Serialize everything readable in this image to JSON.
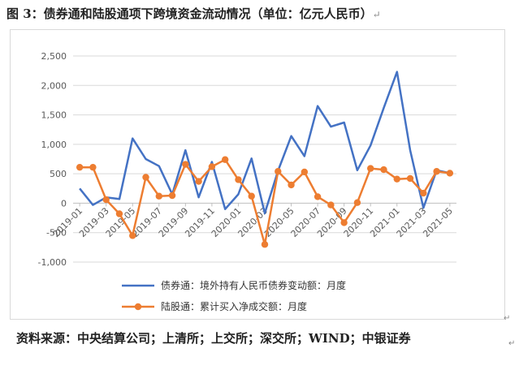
{
  "figure": {
    "title": "图 3：债券通和陆股通项下跨境资金流动情况（单位：亿元人民币）",
    "source": "资料来源：中央结算公司；上清所；上交所；深交所；WIND；中银证券"
  },
  "colors": {
    "bond": "#4472C4",
    "stock": "#ED7D31",
    "grid": "#d9d9d9",
    "axis": "#bfbfbf"
  },
  "chart_data": {
    "type": "line",
    "x": [
      "2019-01",
      "2019-02",
      "2019-03",
      "2019-04",
      "2019-05",
      "2019-06",
      "2019-07",
      "2019-08",
      "2019-09",
      "2019-10",
      "2019-11",
      "2019-12",
      "2020-01",
      "2020-02",
      "2020-03",
      "2020-04",
      "2020-05",
      "2020-06",
      "2020-07",
      "2020-08",
      "2020-09",
      "2020-10",
      "2020-11",
      "2020-12",
      "2021-01",
      "2021-02",
      "2021-03",
      "2021-04",
      "2021-05"
    ],
    "tick_labels": [
      "2019-01",
      "2019-03",
      "2019-05",
      "2019-07",
      "2019-09",
      "2019-11",
      "2020-01",
      "2020-03",
      "2020-05",
      "2020-07",
      "2020-09",
      "2020-11",
      "2021-01",
      "2021-03",
      "2021-05"
    ],
    "y_ticks": [
      -1000,
      -500,
      0,
      500,
      1000,
      1500,
      2000,
      2500
    ],
    "y_tick_labels": [
      "-1,000",
      "-500",
      "0",
      "500",
      "1,000",
      "1,500",
      "2,000",
      "2,500"
    ],
    "ylim": [
      -1000,
      2500
    ],
    "grid": true,
    "legend_position": "bottom",
    "series": [
      {
        "name": "债券通：境外持有人民币债券变动额：月度",
        "marker": false,
        "values": [
          250,
          -30,
          100,
          70,
          1100,
          750,
          630,
          150,
          900,
          100,
          700,
          -100,
          150,
          760,
          -170,
          550,
          1140,
          800,
          1650,
          1300,
          1370,
          560,
          980,
          1620,
          2230,
          900,
          -80,
          560,
          510
        ]
      },
      {
        "name": "陆股通：累计买入净成交额：月度",
        "marker": true,
        "values": [
          610,
          610,
          60,
          -180,
          -550,
          440,
          120,
          130,
          660,
          370,
          620,
          740,
          400,
          120,
          -700,
          540,
          310,
          530,
          110,
          -30,
          -330,
          10,
          590,
          570,
          410,
          420,
          170,
          540,
          510
        ]
      }
    ]
  }
}
